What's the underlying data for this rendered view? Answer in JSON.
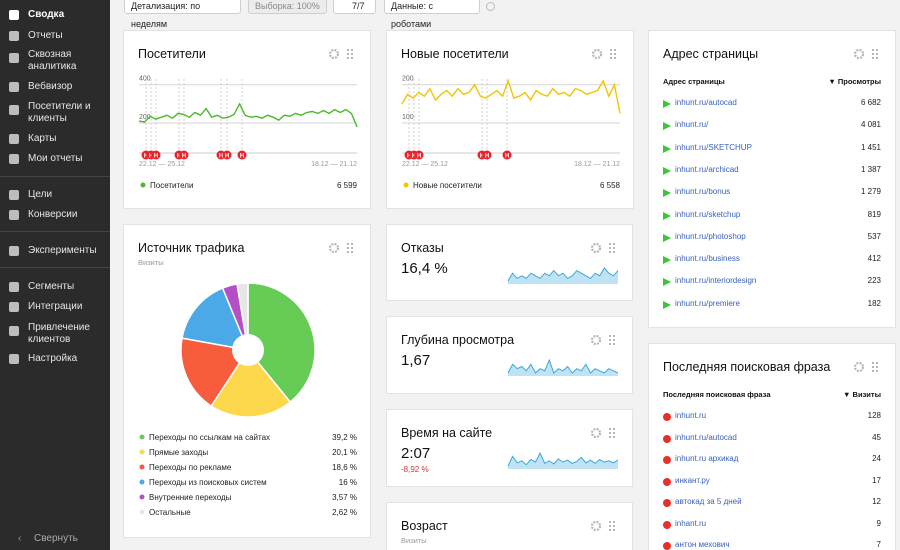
{
  "sidebar": {
    "items": [
      "Сводка",
      "Отчеты",
      "Сквозная аналитика",
      "Вебвизор",
      "Посетители и клиенты",
      "Карты",
      "Мои отчеты",
      "Цели",
      "Конверсии",
      "Эксперименты",
      "Сегменты",
      "Интеграции",
      "Привлечение клиентов",
      "Настройка"
    ],
    "collapse": "Свернуть"
  },
  "toolbar": {
    "detail": "Детализация: по неделям",
    "sample": "Выборка: 100%",
    "segments": "7/7",
    "data": "Данные: с роботами"
  },
  "visitors": {
    "title": "Посетители",
    "marker_label": "Н",
    "date_labels": [
      "22.12 — 25.12",
      "18.12 — 21.12"
    ],
    "total": "6 599",
    "chart_data": {
      "type": "line",
      "ylim": [
        90,
        430
      ],
      "yticks": [
        200,
        400
      ],
      "grid": true,
      "series": [
        {
          "name": "Посетители",
          "color": "#4cb82e",
          "values": [
            210,
            205,
            235,
            220,
            230,
            240,
            225,
            250,
            245,
            230,
            255,
            240,
            275,
            230,
            240,
            225,
            230,
            245,
            300,
            240,
            230,
            235,
            225,
            240,
            230,
            215,
            240,
            235,
            250,
            240,
            255,
            260,
            250,
            265,
            250,
            270,
            255,
            270,
            250,
            180
          ]
        }
      ]
    }
  },
  "new_visitors": {
    "title": "Новые посетители",
    "marker_label": "Н",
    "date_labels": [
      "22.12 — 25.12",
      "18.12 — 21.12"
    ],
    "total": "6 558",
    "chart_data": {
      "type": "line",
      "ylim": [
        45,
        215
      ],
      "yticks": [
        100,
        200
      ],
      "grid": true,
      "series": [
        {
          "name": "Новые посетители",
          "color": "#f2c500",
          "values": [
            150,
            175,
            165,
            180,
            170,
            190,
            160,
            175,
            185,
            170,
            190,
            175,
            180,
            200,
            170,
            165,
            175,
            185,
            170,
            210,
            165,
            170,
            180,
            160,
            185,
            175,
            170,
            190,
            175,
            180,
            170,
            190,
            185,
            175,
            180,
            185,
            210,
            170,
            200,
            125
          ]
        }
      ]
    }
  },
  "traffic": {
    "title": "Источник трафика",
    "subtitle": "Визиты",
    "chart_data": {
      "type": "pie",
      "categories": [
        "Переходы по ссылкам на сайтах",
        "Прямые заходы",
        "Переходы по рекламе",
        "Переходы из поисковых систем",
        "Внутренние переходы",
        "Остальные"
      ],
      "values": [
        39.2,
        20.1,
        18.6,
        16,
        3.57,
        2.62
      ],
      "value_labels": [
        "39,2 %",
        "20,1 %",
        "18,6 %",
        "16 %",
        "3,57 %",
        "2,62 %"
      ],
      "colors": [
        "#66cc55",
        "#fdd84c",
        "#f75c3c",
        "#4aa9e6",
        "#b54fc8",
        "#e6e6e6"
      ]
    }
  },
  "bounce": {
    "title": "Отказы",
    "value": "16,4 %",
    "chart_data": {
      "type": "area",
      "color": "#3aa8d8",
      "values": [
        14,
        17,
        15,
        16,
        15,
        17,
        16,
        15,
        17,
        16,
        18,
        16,
        17,
        15,
        16,
        18,
        17,
        16,
        15,
        17,
        16,
        19,
        17,
        16,
        18
      ]
    }
  },
  "depth": {
    "title": "Глубина просмотра",
    "value": "1,67",
    "chart_data": {
      "type": "area",
      "color": "#3aa8d8",
      "values": [
        1.66,
        1.7,
        1.68,
        1.69,
        1.67,
        1.7,
        1.66,
        1.68,
        1.67,
        1.72,
        1.66,
        1.68,
        1.67,
        1.69,
        1.66,
        1.68,
        1.67,
        1.7,
        1.66,
        1.68,
        1.67,
        1.66,
        1.68,
        1.67,
        1.66
      ]
    }
  },
  "time": {
    "title": "Время на сайте",
    "value": "2:07",
    "change": "-8,92 %",
    "chart_data": {
      "type": "area",
      "color": "#3aa8d8",
      "values": [
        120,
        135,
        125,
        128,
        122,
        130,
        126,
        140,
        124,
        128,
        123,
        131,
        126,
        129,
        124,
        127,
        133,
        125,
        129,
        124,
        130,
        126,
        128,
        125,
        129
      ]
    }
  },
  "age": {
    "title": "Возраст",
    "subtitle": "Визиты"
  },
  "pages": {
    "title": "Адрес страницы",
    "header": [
      "Адрес страницы",
      "▼ Просмотры"
    ],
    "rows": [
      [
        "inhunt.ru/autocad",
        "6 682"
      ],
      [
        "inhunt.ru/",
        "4 081"
      ],
      [
        "inhunt.ru/SKETCHUP",
        "1 451"
      ],
      [
        "inhunt.ru/archicad",
        "1 387"
      ],
      [
        "inhunt.ru/bonus",
        "1 279"
      ],
      [
        "inhunt.ru/sketchup",
        "819"
      ],
      [
        "inhunt.ru/photoshop",
        "537"
      ],
      [
        "inhunt.ru/business",
        "412"
      ],
      [
        "inhunt.ru/interiordesign",
        "223"
      ],
      [
        "inhunt.ru/premiere",
        "182"
      ]
    ]
  },
  "search": {
    "title": "Последняя поисковая фраза",
    "header": [
      "Последняя поисковая фраза",
      "▼ Визиты"
    ],
    "rows": [
      [
        "inhunt.ru",
        "128"
      ],
      [
        "inhunt.ru/autocad",
        "45"
      ],
      [
        "inhunt.ru архикад",
        "24"
      ],
      [
        "инкант.ру",
        "17"
      ],
      [
        "автокад за 5 дней",
        "12"
      ],
      [
        "inhant.ru",
        "9"
      ],
      [
        "антон мехович",
        "7"
      ]
    ]
  }
}
